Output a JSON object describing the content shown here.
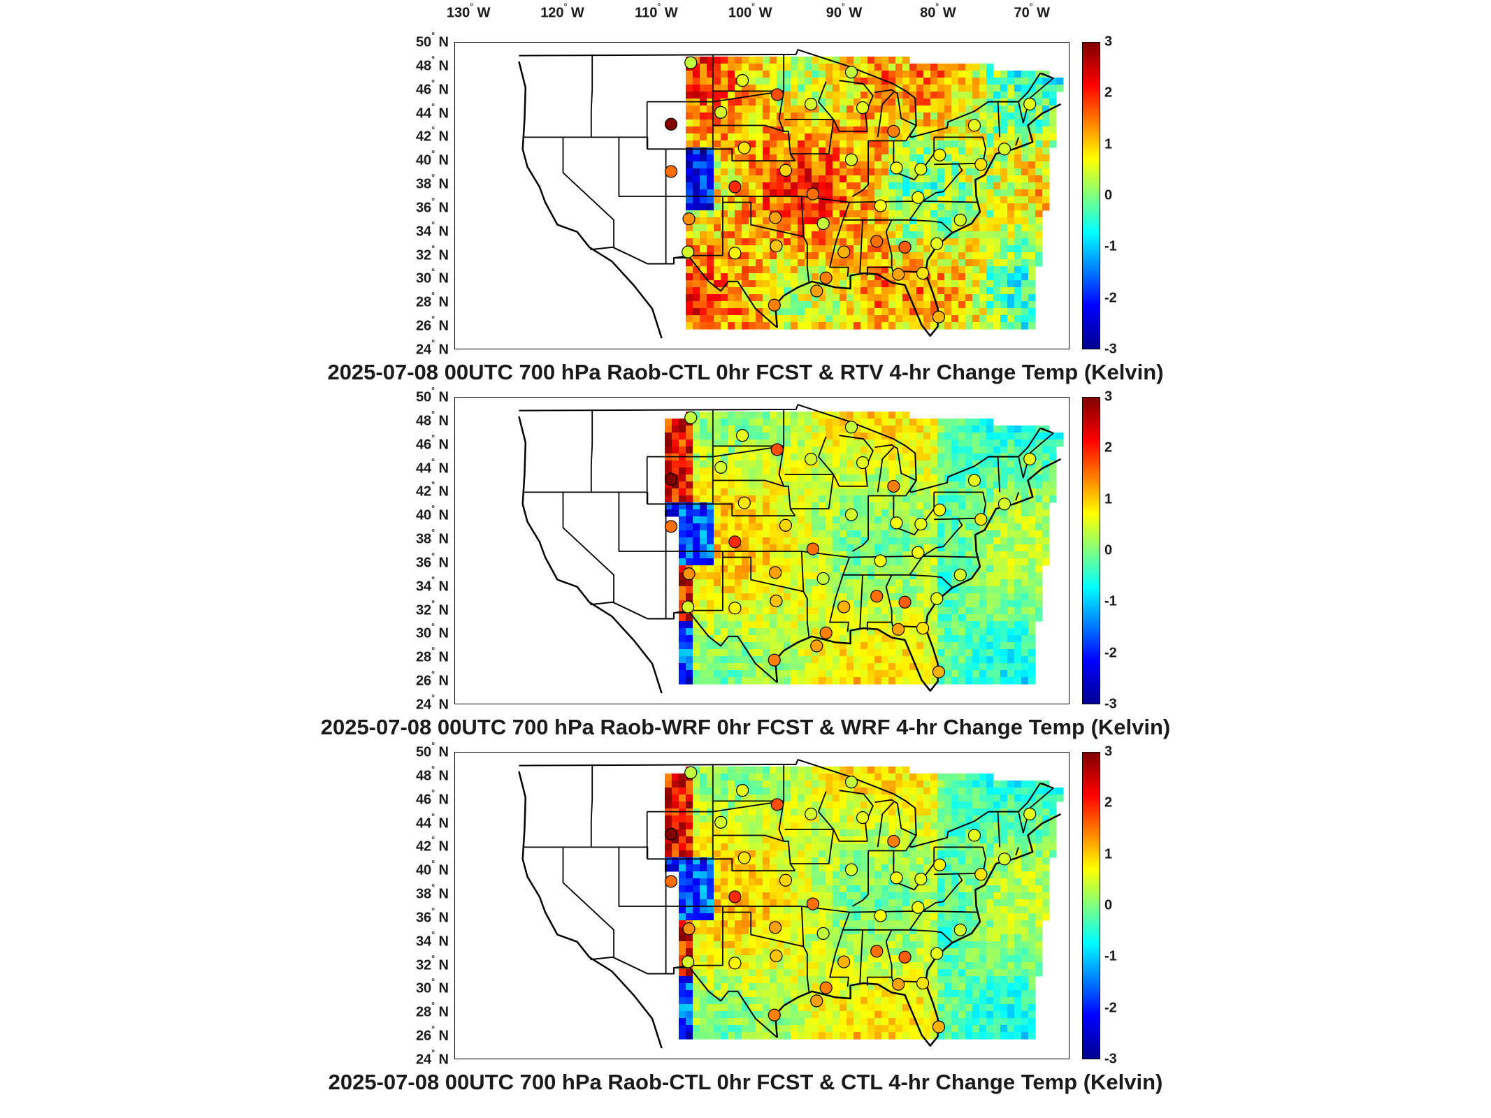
{
  "longitude_labels": [
    {
      "deg": "130",
      "dir": "W"
    },
    {
      "deg": "120",
      "dir": "W"
    },
    {
      "deg": "110",
      "dir": "W"
    },
    {
      "deg": "100",
      "dir": "W"
    },
    {
      "deg": "90",
      "dir": "W"
    },
    {
      "deg": "80",
      "dir": "W"
    },
    {
      "deg": "70",
      "dir": "W"
    }
  ],
  "latitude_labels": [
    {
      "deg": "50",
      "dir": "N"
    },
    {
      "deg": "48",
      "dir": "N"
    },
    {
      "deg": "46",
      "dir": "N"
    },
    {
      "deg": "44",
      "dir": "N"
    },
    {
      "deg": "42",
      "dir": "N"
    },
    {
      "deg": "40",
      "dir": "N"
    },
    {
      "deg": "38",
      "dir": "N"
    },
    {
      "deg": "36",
      "dir": "N"
    },
    {
      "deg": "34",
      "dir": "N"
    },
    {
      "deg": "32",
      "dir": "N"
    },
    {
      "deg": "30",
      "dir": "N"
    },
    {
      "deg": "28",
      "dir": "N"
    },
    {
      "deg": "26",
      "dir": "N"
    },
    {
      "deg": "24",
      "dir": "N"
    }
  ],
  "colorbar": {
    "ticks": [
      "3",
      "2",
      "1",
      "0",
      "-1",
      "-2",
      "-3"
    ],
    "range": [
      -3,
      3
    ],
    "colormap": "jet"
  },
  "panels": [
    {
      "title": "2025-07-08 00UTC 700 hPa Raob-CTL 0hr FCST & RTV 4-hr Change Temp (Kelvin)",
      "field": "RTV"
    },
    {
      "title": "2025-07-08 00UTC 700 hPa Raob-WRF 0hr FCST & WRF 4-hr Change Temp (Kelvin)",
      "field": "WRF"
    },
    {
      "title": "2025-07-08 00UTC 700 hPa Raob-CTL 0hr FCST & CTL 4-hr Change Temp (Kelvin)",
      "field": "CTL"
    }
  ],
  "colors": {
    "dark_red": "#8b0000",
    "red": "#e31a1c",
    "orange": "#f28c28",
    "yellow": "#f4e04a",
    "yellowgreen": "#b9e36b",
    "green": "#8fe08a",
    "cyan": "#40d9f0",
    "blue": "#1f5cff"
  },
  "raob_stations": [
    {
      "lon": -106.4,
      "lat": 48.3,
      "value": 0.4
    },
    {
      "lon": -108.5,
      "lat": 43.1,
      "value": 3.0
    },
    {
      "lon": -108.5,
      "lat": 39.1,
      "value": 1.6
    },
    {
      "lon": -106.6,
      "lat": 35.1,
      "value": 1.4
    },
    {
      "lon": -106.7,
      "lat": 32.3,
      "value": 0.5
    },
    {
      "lon": -101.7,
      "lat": 32.2,
      "value": 0.8
    },
    {
      "lon": -100.9,
      "lat": 46.8,
      "value": 0.6
    },
    {
      "lon": -103.2,
      "lat": 44.1,
      "value": 0.5
    },
    {
      "lon": -97.2,
      "lat": 45.6,
      "value": 1.8
    },
    {
      "lon": -100.7,
      "lat": 41.1,
      "value": 0.9
    },
    {
      "lon": -101.7,
      "lat": 37.8,
      "value": 2.0
    },
    {
      "lon": -96.3,
      "lat": 39.2,
      "value": 1.0
    },
    {
      "lon": -97.4,
      "lat": 35.2,
      "value": 1.3
    },
    {
      "lon": -97.3,
      "lat": 32.8,
      "value": 1.1
    },
    {
      "lon": -93.4,
      "lat": 37.2,
      "value": 1.6
    },
    {
      "lon": -92.3,
      "lat": 34.7,
      "value": 0.4
    },
    {
      "lon": -93.6,
      "lat": 44.8,
      "value": 0.5
    },
    {
      "lon": -89.3,
      "lat": 47.5,
      "value": 0.4
    },
    {
      "lon": -88.1,
      "lat": 44.5,
      "value": 0.6
    },
    {
      "lon": -89.3,
      "lat": 40.1,
      "value": 0.5
    },
    {
      "lon": -84.8,
      "lat": 42.5,
      "value": 1.5
    },
    {
      "lon": -86.2,
      "lat": 36.2,
      "value": 0.7
    },
    {
      "lon": -86.6,
      "lat": 33.2,
      "value": 1.6
    },
    {
      "lon": -90.1,
      "lat": 32.3,
      "value": 1.2
    },
    {
      "lon": -92.0,
      "lat": 30.1,
      "value": 1.5
    },
    {
      "lon": -83.6,
      "lat": 32.7,
      "value": 1.7
    },
    {
      "lon": -84.3,
      "lat": 30.4,
      "value": 1.3
    },
    {
      "lon": -81.7,
      "lat": 30.5,
      "value": 0.9
    },
    {
      "lon": -80.0,
      "lat": 26.8,
      "value": 1.2
    },
    {
      "lon": -81.9,
      "lat": 39.3,
      "value": 0.6
    },
    {
      "lon": -82.2,
      "lat": 36.9,
      "value": 0.7
    },
    {
      "lon": -80.2,
      "lat": 33.0,
      "value": 0.6
    },
    {
      "lon": -77.7,
      "lat": 35.0,
      "value": 0.5
    },
    {
      "lon": -79.9,
      "lat": 40.5,
      "value": 0.8
    },
    {
      "lon": -76.2,
      "lat": 43.0,
      "value": 0.6
    },
    {
      "lon": -75.5,
      "lat": 39.7,
      "value": 0.9
    },
    {
      "lon": -73.0,
      "lat": 41.0,
      "value": 0.5
    },
    {
      "lon": -70.3,
      "lat": 44.8,
      "value": 0.6
    },
    {
      "lon": -93.0,
      "lat": 29.0,
      "value": 1.3
    },
    {
      "lon": -97.5,
      "lat": 27.8,
      "value": 1.5
    },
    {
      "lon": -84.5,
      "lat": 39.4,
      "value": 0.7
    }
  ]
}
